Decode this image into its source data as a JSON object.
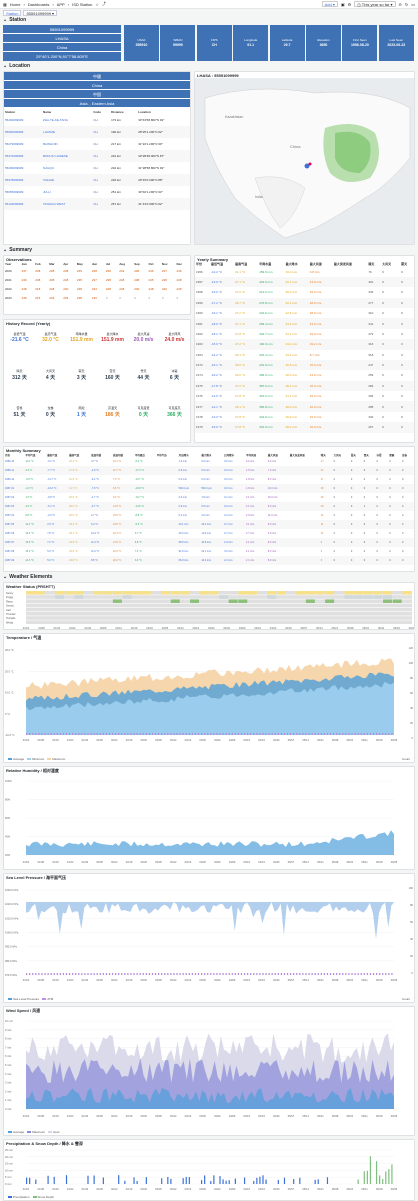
{
  "topbar": {
    "home": "Home",
    "dashboards": "Dashboards",
    "app": "APP",
    "page": "ISD Station",
    "add": "Add",
    "range": "This year so far"
  },
  "vars": {
    "label": "Station",
    "value": "55591099999"
  },
  "sections": {
    "station": "Station",
    "location": "Location",
    "summary": "Summary",
    "weather": "Weather Elements"
  },
  "station": {
    "id": "55591099999",
    "name": "LHASA",
    "country": "China",
    "coord": "29°40'1.200\"N,91°7'58.800\"E",
    "stats": [
      {
        "label": "USAF",
        "value": "555910"
      },
      {
        "label": "WBAN",
        "value": "99999"
      },
      {
        "label": "FIPS",
        "value": "CH"
      },
      {
        "label": "Longitude",
        "value": "91.1"
      },
      {
        "label": "Latitude",
        "value": "29.7"
      },
      {
        "label": "Elevation",
        "value": "3650"
      },
      {
        "label": "First Seen",
        "value": "1956-08-20"
      },
      {
        "label": "Last Seen",
        "value": "2023-06-23"
      }
    ]
  },
  "location": {
    "lines": [
      "中國",
      "China",
      "中国",
      "Asia, , Eastern Asia"
    ],
    "map_title": "LHASA : 55591099999",
    "headers": [
      "Station",
      "Name",
      "Code",
      "Distance",
      "Location"
    ],
    "rows": [
      [
        "55493099999",
        "ZHA-TE-KE-TANG",
        "CH",
        "173 km",
        "30°43'58.800\"N 92°"
      ],
      [
        "55690099999",
        "LHUNZE",
        "CH",
        "190 km",
        "28°25'1.200\"N 92°"
      ],
      [
        "55279099999",
        "BAINGOIN",
        "CH",
        "217 km",
        "31°22'1.200\"N 90°"
      ],
      [
        "55472099999",
        "BODUS CHINESE",
        "CH",
        "222 km",
        "30°28'48.000\"N 87°"
      ],
      [
        "55299099999",
        "NAGQU",
        "CH",
        "232 km",
        "31°28'58.800\"N 92°"
      ],
      [
        "55578099999",
        "XIGAZE",
        "CH",
        "226 km",
        "29°15'0.000\"N 88°"
      ],
      [
        "55655099999",
        "JIA-LI",
        "CH",
        "251 km",
        "30°40'1.200\"N 93°"
      ],
      [
        "56102099999",
        "TANGGO WEST",
        "CH",
        "267 km",
        "31°13'0.000\"N 92°"
      ]
    ]
  },
  "observations": {
    "title": "Observations",
    "headers": [
      "Year",
      "Jan",
      "Feb",
      "Mar",
      "Apr",
      "May",
      "Jun",
      "Jul",
      "Aug",
      "Sep",
      "Oct",
      "Nov",
      "Dec"
    ],
    "rows": [
      [
        "2020",
        "237",
        "248",
        "238",
        "238",
        "245",
        "238",
        "228",
        "242",
        "236",
        "246",
        "237",
        "246"
      ],
      [
        "2021",
        "246",
        "248",
        "238",
        "248",
        "235",
        "237",
        "238",
        "248",
        "238",
        "245",
        "248",
        "248"
      ],
      [
        "2022",
        "248",
        "218",
        "248",
        "240",
        "248",
        "234",
        "248",
        "248",
        "240",
        "248",
        "240",
        "248"
      ],
      [
        "2023",
        "248",
        "215",
        "246",
        "226",
        "248",
        "135",
        "0",
        "0",
        "0",
        "0",
        "0",
        "0"
      ]
    ]
  },
  "history": {
    "title": "History Record (Yearly)",
    "items": [
      {
        "label": "最低气温",
        "value": "-21.6 °C",
        "color": "#3d71d9"
      },
      {
        "label": "最高气温",
        "value": "32.0 °C",
        "color": "#e0a51f"
      },
      {
        "label": "年降水量",
        "value": "151.9 mm",
        "color": "#e0a51f"
      },
      {
        "label": "最大降水",
        "value": "151.9 mm",
        "color": "#c33"
      },
      {
        "label": "最大风速",
        "value": "20.0 m/s",
        "color": "#9b59b6"
      },
      {
        "label": "最大阵风",
        "value": "24.0 m/s",
        "color": "#c33"
      },
      {
        "label": "晴天",
        "value": "312 天",
        "color": "#2c3e50"
      },
      {
        "label": "大风天",
        "value": "4 天",
        "color": "#2c3e50"
      },
      {
        "label": "雾天",
        "value": "3 天",
        "color": "#2c3e50"
      },
      {
        "label": "雷天",
        "value": "160 天",
        "color": "#2c3e50"
      },
      {
        "label": "雪天",
        "value": "44 天",
        "color": "#2c3e50"
      },
      {
        "label": "冰雹",
        "value": "6 天",
        "color": "#2c3e50"
      },
      {
        "label": "雷暴",
        "value": "51 天",
        "color": "#2c3e50"
      },
      {
        "label": "龙卷",
        "value": "0 天",
        "color": "#2c3e50"
      },
      {
        "label": "雨凇",
        "value": "1 天",
        "color": "#3d71d9"
      },
      {
        "label": "高温天",
        "value": "186 天",
        "color": "#e67e22"
      },
      {
        "label": "可见度低",
        "value": "0 天",
        "color": "#27ae60"
      },
      {
        "label": "可见度高",
        "value": "366 天",
        "color": "#27ae60"
      }
    ]
  },
  "yearly": {
    "title": "Yearly Summary",
    "headers": [
      "年份",
      "最低气温",
      "最高气温",
      "年降水量",
      "最大降水",
      "最大风速",
      "最大突发风速",
      "晴天",
      "大风天",
      "雾天"
    ],
    "rows": [
      [
        "1956",
        "-12.2 °C",
        "21.1 °C",
        "159.9 mm",
        "16.0 mm",
        "9.8 m/s",
        "",
        "76",
        "0",
        "0"
      ],
      [
        "1957",
        "-13.9 °C",
        "27.1 °C",
        "219.9 mm",
        "22.1 mm",
        "13.9 m/s",
        "",
        "301",
        "0",
        "0"
      ],
      [
        "1958",
        "-15.0 °C",
        "27.6 °C",
        "214.6 mm",
        "45.0 mm",
        "15.0 m/s",
        "",
        "335",
        "0",
        "0"
      ],
      [
        "1959",
        "-17.2 °C",
        "26.7 °C",
        "276.8 mm",
        "22.1 mm",
        "18.0 m/s",
        "",
        "277",
        "0",
        "0"
      ],
      [
        "1960",
        "-16.1 °C",
        "27.2 °C",
        "224.6 mm",
        "22.6 mm",
        "18.0 m/s",
        "",
        "310",
        "0",
        "0"
      ],
      [
        "1961",
        "-18.9 °C",
        "27.1 °C",
        "283.4 mm",
        "24.4 mm",
        "14.0 m/s",
        "",
        "341",
        "0",
        "3"
      ],
      [
        "1962",
        "-18.1 °C",
        "27.8 °C",
        "344.7 mm",
        "51.1 mm",
        "19.0 m/s",
        "",
        "279",
        "0",
        "0"
      ],
      [
        "1963",
        "-15.0 °C",
        "27.2 °C",
        "192.0 mm",
        "23.4 mm",
        "19.2 m/s",
        "",
        "316",
        "0",
        "0"
      ],
      [
        "1964",
        "-14.2 °C",
        "26.1 °C",
        "222.4 mm",
        "23.4 mm",
        "8.7 m/s",
        "",
        "318",
        "0",
        "0"
      ],
      [
        "1973",
        "-16.1 °C",
        "30.0 °C",
        "201.9 mm",
        "30.5 mm",
        "15.0 m/s",
        "",
        "247",
        "0",
        "0"
      ],
      [
        "1974",
        "-16.2 °C",
        "26.0 °C",
        "399.0 mm",
        "20.0 mm",
        "13.0 m/s",
        "",
        "259",
        "0",
        "0"
      ],
      [
        "1975",
        "-17.8 °C",
        "27.2 °C",
        "387.6 mm",
        "36.1 mm",
        "16.0 m/s",
        "",
        "283",
        "0",
        "0"
      ],
      [
        "1976",
        "-14.9 °C",
        "27.8 °C",
        "315.6 mm",
        "21.1 mm",
        "15.0 m/s",
        "",
        "266",
        "0",
        "0"
      ],
      [
        "1977",
        "-14.1 °C",
        "26.1 °C",
        "365.8 mm",
        "30.0 mm",
        "10.0 m/s",
        "",
        "285",
        "0",
        "0"
      ],
      [
        "1978",
        "-13.3 °C",
        "27.8 °C",
        "344.9 mm",
        "26.9 mm",
        "16.0 m/s",
        "",
        "330",
        "0",
        "0"
      ],
      [
        "1979",
        "-15.0 °C",
        "27.8 °C",
        "331.9 mm",
        "28.2 mm",
        "16.0 m/s",
        "",
        "267",
        "0",
        "0"
      ]
    ]
  },
  "monthly": {
    "title": "Monthly Summary",
    "headers": [
      "月份",
      "平均气温",
      "最低气温",
      "最高气温",
      "低温均值",
      "高温均值",
      "平均露点",
      "平均气压",
      "月总降水",
      "最大降水",
      "日均降水",
      "平均风速",
      "最大风速",
      "最大突发风速",
      "晴天",
      "大风天",
      "雾天",
      "雪天",
      "冰雹",
      "雷暴",
      "龙卷"
    ],
    "rows": [
      [
        "1956-10",
        "11.6 °C",
        "-0.1 °C",
        "24.4 °C",
        "3.7 °C",
        "16.1 °C",
        "-6.4 °C",
        "",
        "1.0 mm",
        "0.0 mm",
        "0.0 mm",
        "2.0 m/s",
        "6.0 m/s",
        "",
        "17",
        "0",
        "0",
        "0",
        "0",
        "0",
        "0"
      ],
      [
        "1956-11",
        "3.4 °C",
        "-7.7 °C",
        "17.6 °C",
        "-2.9 °C",
        "10.7 °C",
        "-17.0 °C",
        "",
        "0.0 mm",
        "0.0 mm",
        "0.0 mm",
        "1.5 m/s",
        "7.0 m/s",
        "",
        "27",
        "0",
        "0",
        "0",
        "0",
        "0",
        "0"
      ],
      [
        "1956-12",
        "-0.8 °C",
        "-11.7 °C",
        "12.9 °C",
        "-6.2 °C",
        "7.0 °C",
        "-13.7 °C",
        "",
        "0.0 mm",
        "0.0 mm",
        "0.0 mm",
        "1.8 m/s",
        "8.0 m/s",
        "",
        "27",
        "0",
        "0",
        "0",
        "0",
        "0",
        "0"
      ],
      [
        "1957-01",
        "-2.0 °C",
        "-12.0 °C",
        "11.7 °C",
        "-7.9 °C",
        "6.6 °C",
        "-20.8 °C",
        "",
        "500.0 µm",
        "500.0 µm",
        "0.0 mm",
        "1.8 m/s",
        "10.0 m/s",
        "",
        "29",
        "0",
        "0",
        "0",
        "0",
        "0",
        "0"
      ],
      [
        "1957-02",
        "1.5 °C",
        "-9.8 °C",
        "15.6 °C",
        "-4.7 °C",
        "9.4 °C",
        "-16.7 °C",
        "",
        "2.0 mm",
        "1.5 mm",
        "0.1 mm",
        "2.1 m/s",
        "10.0 m/s",
        "",
        "26",
        "0",
        "0",
        "0",
        "0",
        "0",
        "0"
      ],
      [
        "1957-03",
        "4.9 °C",
        "-6.1 °C",
        "20.0 °C",
        "-0.7 °C",
        "13.5 °C",
        "-14.5 °C",
        "",
        "0.9 mm",
        "0.5 mm",
        "0.0 mm",
        "2.1 m/s",
        "9.0 m/s",
        "",
        "23",
        "0",
        "0",
        "1",
        "0",
        "0",
        "0"
      ],
      [
        "1957-04",
        "8.8 °C",
        "-2.9 °C",
        "20.0 °C",
        "2.7 °C",
        "15.6 °C",
        "-8.8 °C",
        "",
        "6.1 mm",
        "3.0 mm",
        "0.2 mm",
        "2.9 m/s",
        "11.0 m/s",
        "",
        "21",
        "0",
        "0",
        "0",
        "0",
        "0",
        "0"
      ],
      [
        "1957-05",
        "12.2 °C",
        "2.9 °C",
        "23.4 °C",
        "6.4 °C",
        "19.5 °C",
        "-5.3 °C",
        "",
        "23.1 mm",
        "10.4 mm",
        "0.7 mm",
        "3.1 m/s",
        "9.0 m/s",
        "",
        "11",
        "0",
        "0",
        "0",
        "0",
        "0",
        "0"
      ],
      [
        "1957-06",
        "16.6 °C",
        "7.8 °C",
        "26.1 °C",
        "10.4 °C",
        "22.3 °C",
        "3.7 °C",
        "",
        "20.0 mm",
        "11.9 mm",
        "0.7 mm",
        "2.7 m/s",
        "9.0 m/s",
        "",
        "11",
        "0",
        "0",
        "0",
        "0",
        "0",
        "0"
      ],
      [
        "1957-07",
        "15.9 °C",
        "7.2 °C",
        "24.6 °C",
        "11.0 °C",
        "21.5 °C",
        "6.8 °C",
        "",
        "58.8 mm",
        "10.8 mm",
        "1.9 mm",
        "2.1 m/s",
        "8.0 m/s",
        "",
        "6",
        "0",
        "0",
        "0",
        "0",
        "0",
        "0"
      ],
      [
        "1957-08",
        "15.2 °C",
        "5.0 °C",
        "23.6 °C",
        "11.0 °C",
        "22.3 °C",
        "7.4 °C",
        "",
        "91.8 mm",
        "22.1 mm",
        "3.0 mm",
        "2.1 m/s",
        "8.0 m/s",
        "",
        "6",
        "0",
        "0",
        "0",
        "0",
        "0",
        "0"
      ],
      [
        "1957-09",
        "14.3 °C",
        "5.0 °C",
        "23.6 °C",
        "8.5 °C",
        "20.4 °C",
        "3.4 °C",
        "",
        "66.8 mm",
        "10.0 mm",
        "2.2 mm",
        "2.1 m/s",
        "8.0 m/s",
        "",
        "6",
        "0",
        "0",
        "0",
        "0",
        "0",
        "0"
      ]
    ]
  },
  "charts": {
    "status_title": "Weather Status (PRSHTT)",
    "status_rows": [
      "Sunny",
      "Foggy",
      "Rainy",
      "Snowy",
      "Hail",
      "Thunder",
      "Tornado",
      "Windy"
    ],
    "x_labels": [
      "01/01",
      "01/08",
      "01/15",
      "01/22",
      "01/29",
      "02/05",
      "02/12",
      "02/19",
      "02/26",
      "03/05",
      "03/12",
      "03/19",
      "03/26",
      "04/02",
      "04/09",
      "04/16",
      "04/23",
      "04/30",
      "05/07",
      "05/14",
      "05/21",
      "05/28",
      "06/04",
      "06/11",
      "06/18",
      "06/25"
    ],
    "temp": {
      "title": "Temperature / 气温",
      "legend": [
        "Average",
        "Minimum",
        "Maximum"
      ],
      "right_label": "Count",
      "y_ticks": [
        "30.0 °C",
        "20.0 °C",
        "10.0 °C",
        "0 °C",
        "-10.0 °C"
      ],
      "r_ticks": [
        "120",
        "100",
        "80",
        "60",
        "40",
        "20",
        "0"
      ]
    },
    "humid": {
      "title": "Relative Humidity / 相对湿度",
      "y_ticks": [
        "100%",
        "80%",
        "60%",
        "40%",
        "20%"
      ]
    },
    "press": {
      "title": "Sea Level Pressure / 海平面气压",
      "legend": [
        "Sea Level Pressure",
        "ATM"
      ],
      "right_label": "Count",
      "y_ticks": [
        "1030.0 hPa",
        "1020.0 hPa",
        "1010.0 hPa",
        "1000.0 hPa",
        "990.0 hPa",
        "980.0 hPa",
        "970.0 hPa"
      ],
      "r_ticks": [
        "100",
        "80",
        "60",
        "40",
        "20",
        "0"
      ]
    },
    "wind": {
      "title": "Wind Speed / 风速",
      "legend": [
        "Average",
        "Maximum",
        "Gust"
      ],
      "y_ticks": [
        "10 m/s",
        "9 m/s",
        "8 m/s",
        "7 m/s",
        "6 m/s",
        "5 m/s",
        "4 m/s",
        "3 m/s",
        "2 m/s",
        "1 m/s",
        "0 m/s"
      ]
    },
    "precip": {
      "title": "Precipitation & Snow Depth / 降水 & 雪深",
      "legend": [
        "Precipitation",
        "Snow Depth"
      ],
      "y_ticks": [
        "25 mm",
        "20 mm",
        "15 mm",
        "10 mm",
        "5 mm",
        "0 mm"
      ]
    }
  }
}
